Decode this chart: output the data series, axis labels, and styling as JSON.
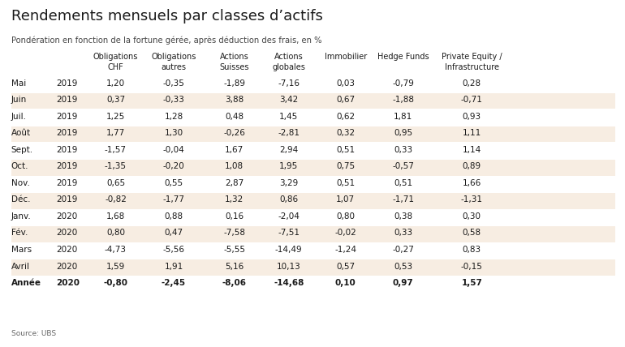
{
  "title": "Rendements mensuels par classes d’actifs",
  "subtitle": "Pondération en fonction de la fortune gérée, après déduction des frais, en %",
  "source": "Source: UBS",
  "columns": [
    "Obligations\nCHF",
    "Obligations\nautres",
    "Actions\nSuisses",
    "Actions\nglobales",
    "Immobilier",
    "Hedge Funds",
    "Private Equity /\nInfrastructure"
  ],
  "row_labels": [
    [
      "Mai",
      "2019"
    ],
    [
      "Juin",
      "2019"
    ],
    [
      "Juil.",
      "2019"
    ],
    [
      "Août",
      "2019"
    ],
    [
      "Sept.",
      "2019"
    ],
    [
      "Oct.",
      "2019"
    ],
    [
      "Nov.",
      "2019"
    ],
    [
      "Déc.",
      "2019"
    ],
    [
      "Janv.",
      "2020"
    ],
    [
      "Fév.",
      "2020"
    ],
    [
      "Mars",
      "2020"
    ],
    [
      "Avril",
      "2020"
    ],
    [
      "Année",
      "2020"
    ]
  ],
  "data": [
    [
      1.2,
      -0.35,
      -1.89,
      -7.16,
      0.03,
      -0.79,
      0.28
    ],
    [
      0.37,
      -0.33,
      3.88,
      3.42,
      0.67,
      -1.88,
      -0.71
    ],
    [
      1.25,
      1.28,
      0.48,
      1.45,
      0.62,
      1.81,
      0.93
    ],
    [
      1.77,
      1.3,
      -0.26,
      -2.81,
      0.32,
      0.95,
      1.11
    ],
    [
      -1.57,
      -0.04,
      1.67,
      2.94,
      0.51,
      0.33,
      1.14
    ],
    [
      -1.35,
      -0.2,
      1.08,
      1.95,
      0.75,
      -0.57,
      0.89
    ],
    [
      0.65,
      0.55,
      2.87,
      3.29,
      0.51,
      0.51,
      1.66
    ],
    [
      -0.82,
      -1.77,
      1.32,
      0.86,
      1.07,
      -1.71,
      -1.31
    ],
    [
      1.68,
      0.88,
      0.16,
      -2.04,
      0.8,
      0.38,
      0.3
    ],
    [
      0.8,
      0.47,
      -7.58,
      -7.51,
      -0.02,
      0.33,
      0.58
    ],
    [
      -4.73,
      -5.56,
      -5.55,
      -14.49,
      -1.24,
      -0.27,
      0.83
    ],
    [
      1.59,
      1.91,
      5.16,
      10.13,
      0.57,
      0.53,
      -0.15
    ],
    [
      -0.8,
      -2.45,
      -8.06,
      -14.68,
      0.1,
      0.97,
      1.57
    ]
  ],
  "shaded_rows": [
    1,
    3,
    5,
    7,
    9,
    11
  ],
  "bold_rows": [
    12
  ],
  "bg_color": "#ffffff",
  "shade_color": "#f7ede2",
  "title_color": "#1a1a1a",
  "subtitle_color": "#444444",
  "text_color": "#1a1a1a",
  "line_color_thick": "#888888",
  "line_color_thin": "#bbbbbb",
  "source_color": "#666666"
}
